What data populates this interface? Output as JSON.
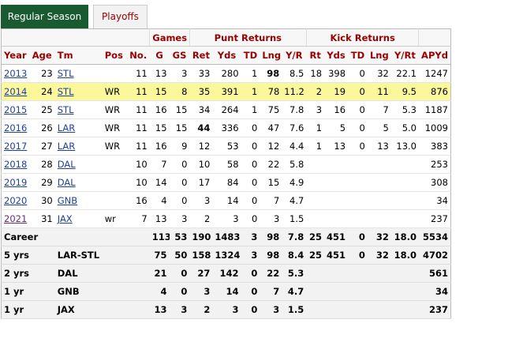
{
  "tabs": [
    {
      "label": "Regular Season",
      "active": true
    },
    {
      "label": "Playoffs",
      "active": false
    }
  ],
  "groups": {
    "games": "Games",
    "punt_returns": "Punt Returns",
    "kick_returns": "Kick Returns"
  },
  "columns": [
    "Year",
    "Age",
    "Tm",
    "Pos",
    "No.",
    "G",
    "GS",
    "Ret",
    "Yds",
    "TD",
    "Lng",
    "Y/R",
    "Rt",
    "Yds",
    "TD",
    "Lng",
    "Y/Rt",
    "APYd"
  ],
  "rows": [
    {
      "year": "2013",
      "age": "23",
      "tm": "STL",
      "pos": "",
      "no": "11",
      "g": "13",
      "gs": "3",
      "pr_ret": "33",
      "pr_yds": "280",
      "pr_td": "1",
      "pr_lng": "98",
      "pr_yr": "8.5",
      "kr_rt": "18",
      "kr_yds": "398",
      "kr_td": "0",
      "kr_lng": "32",
      "kr_yrt": "22.1",
      "apyd": "1247",
      "bold_pr_lng": true
    },
    {
      "year": "2014",
      "age": "24",
      "tm": "STL",
      "pos": "WR",
      "no": "11",
      "g": "15",
      "gs": "8",
      "pr_ret": "35",
      "pr_yds": "391",
      "pr_td": "1",
      "pr_lng": "78",
      "pr_yr": "11.2",
      "kr_rt": "2",
      "kr_yds": "19",
      "kr_td": "0",
      "kr_lng": "11",
      "kr_yrt": "9.5",
      "apyd": "876",
      "highlight": true
    },
    {
      "year": "2015",
      "age": "25",
      "tm": "STL",
      "pos": "WR",
      "no": "11",
      "g": "16",
      "gs": "15",
      "pr_ret": "34",
      "pr_yds": "264",
      "pr_td": "1",
      "pr_lng": "75",
      "pr_yr": "7.8",
      "kr_rt": "3",
      "kr_yds": "16",
      "kr_td": "0",
      "kr_lng": "7",
      "kr_yrt": "5.3",
      "apyd": "1187"
    },
    {
      "year": "2016",
      "age": "26",
      "tm": "LAR",
      "pos": "WR",
      "no": "11",
      "g": "15",
      "gs": "15",
      "pr_ret": "44",
      "pr_yds": "336",
      "pr_td": "0",
      "pr_lng": "47",
      "pr_yr": "7.6",
      "kr_rt": "1",
      "kr_yds": "5",
      "kr_td": "0",
      "kr_lng": "5",
      "kr_yrt": "5.0",
      "apyd": "1009",
      "bold_pr_ret": true
    },
    {
      "year": "2017",
      "age": "27",
      "tm": "LAR",
      "pos": "WR",
      "no": "11",
      "g": "16",
      "gs": "9",
      "pr_ret": "12",
      "pr_yds": "53",
      "pr_td": "0",
      "pr_lng": "12",
      "pr_yr": "4.4",
      "kr_rt": "1",
      "kr_yds": "13",
      "kr_td": "0",
      "kr_lng": "13",
      "kr_yrt": "13.0",
      "apyd": "383"
    },
    {
      "year": "2018",
      "age": "28",
      "tm": "DAL",
      "pos": "",
      "no": "10",
      "g": "7",
      "gs": "0",
      "pr_ret": "10",
      "pr_yds": "58",
      "pr_td": "0",
      "pr_lng": "22",
      "pr_yr": "5.8",
      "kr_rt": "",
      "kr_yds": "",
      "kr_td": "",
      "kr_lng": "",
      "kr_yrt": "",
      "apyd": "253"
    },
    {
      "year": "2019",
      "age": "29",
      "tm": "DAL",
      "pos": "",
      "no": "10",
      "g": "14",
      "gs": "0",
      "pr_ret": "17",
      "pr_yds": "84",
      "pr_td": "0",
      "pr_lng": "15",
      "pr_yr": "4.9",
      "kr_rt": "",
      "kr_yds": "",
      "kr_td": "",
      "kr_lng": "",
      "kr_yrt": "",
      "apyd": "308"
    },
    {
      "year": "2020",
      "age": "30",
      "tm": "GNB",
      "pos": "",
      "no": "16",
      "g": "4",
      "gs": "0",
      "pr_ret": "3",
      "pr_yds": "14",
      "pr_td": "0",
      "pr_lng": "7",
      "pr_yr": "4.7",
      "kr_rt": "",
      "kr_yds": "",
      "kr_td": "",
      "kr_lng": "",
      "kr_yrt": "",
      "apyd": "34"
    },
    {
      "year": "2021",
      "age": "31",
      "tm": "JAX",
      "pos": "wr",
      "no": "7",
      "g": "13",
      "gs": "3",
      "pr_ret": "2",
      "pr_yds": "3",
      "pr_td": "0",
      "pr_lng": "3",
      "pr_yr": "1.5",
      "kr_rt": "",
      "kr_yds": "",
      "kr_td": "",
      "kr_lng": "",
      "kr_yrt": "",
      "apyd": "237",
      "visited": true
    }
  ],
  "summary": [
    {
      "label": "Career",
      "tm": "",
      "g": "113",
      "gs": "53",
      "pr_ret": "190",
      "pr_yds": "1483",
      "pr_td": "3",
      "pr_lng": "98",
      "pr_yr": "7.8",
      "kr_rt": "25",
      "kr_yds": "451",
      "kr_td": "0",
      "kr_lng": "32",
      "kr_yrt": "18.0",
      "apyd": "5534"
    },
    {
      "label": "5 yrs",
      "tm": "LAR-STL",
      "g": "75",
      "gs": "50",
      "pr_ret": "158",
      "pr_yds": "1324",
      "pr_td": "3",
      "pr_lng": "98",
      "pr_yr": "8.4",
      "kr_rt": "25",
      "kr_yds": "451",
      "kr_td": "0",
      "kr_lng": "32",
      "kr_yrt": "18.0",
      "apyd": "4702"
    },
    {
      "label": "2 yrs",
      "tm": "DAL",
      "g": "21",
      "gs": "0",
      "pr_ret": "27",
      "pr_yds": "142",
      "pr_td": "0",
      "pr_lng": "22",
      "pr_yr": "5.3",
      "kr_rt": "",
      "kr_yds": "",
      "kr_td": "",
      "kr_lng": "",
      "kr_yrt": "",
      "apyd": "561"
    },
    {
      "label": "1 yr",
      "tm": "GNB",
      "g": "4",
      "gs": "0",
      "pr_ret": "3",
      "pr_yds": "14",
      "pr_td": "0",
      "pr_lng": "7",
      "pr_yr": "4.7",
      "kr_rt": "",
      "kr_yds": "",
      "kr_td": "",
      "kr_lng": "",
      "kr_yrt": "",
      "apyd": "34"
    },
    {
      "label": "1 yr",
      "tm": "JAX",
      "g": "13",
      "gs": "3",
      "pr_ret": "2",
      "pr_yds": "3",
      "pr_td": "0",
      "pr_lng": "3",
      "pr_yr": "1.5",
      "kr_rt": "",
      "kr_yds": "",
      "kr_td": "",
      "kr_lng": "",
      "kr_yrt": "",
      "apyd": "237"
    }
  ],
  "colors": {
    "tab_active": "#1a5a30",
    "header_text": "#990000",
    "highlight_row": "#fbf89b",
    "link": "#2040a0"
  }
}
